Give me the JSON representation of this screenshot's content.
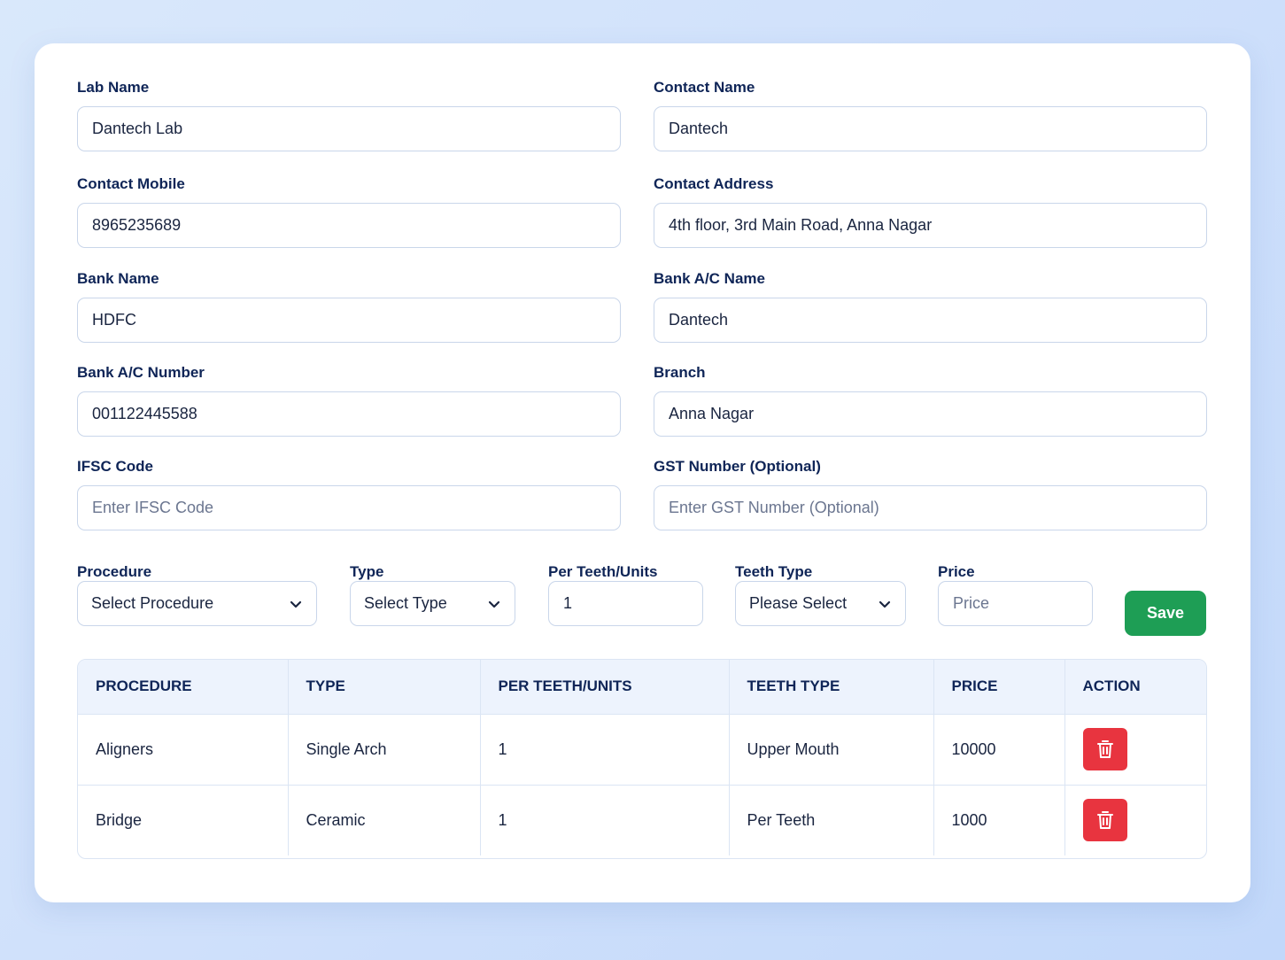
{
  "form": {
    "lab_name": {
      "label": "Lab Name",
      "value": "Dantech Lab"
    },
    "contact_name": {
      "label": "Contact Name",
      "value": "Dantech"
    },
    "contact_mobile": {
      "label": "Contact Mobile",
      "value": "8965235689"
    },
    "contact_address": {
      "label": "Contact Address",
      "value": "4th floor, 3rd Main Road, Anna Nagar"
    },
    "bank_name": {
      "label": "Bank Name",
      "value": "HDFC"
    },
    "bank_ac_name": {
      "label": "Bank A/C Name",
      "value": "Dantech"
    },
    "bank_ac_number": {
      "label": "Bank A/C Number",
      "value": "001122445588"
    },
    "branch": {
      "label": "Branch",
      "value": "Anna Nagar"
    },
    "ifsc_code": {
      "label": "IFSC Code",
      "value": "",
      "placeholder": "Enter IFSC Code"
    },
    "gst_number": {
      "label": "GST Number (Optional)",
      "value": "",
      "placeholder": "Enter GST Number (Optional)"
    }
  },
  "procedure_row": {
    "procedure": {
      "label": "Procedure",
      "selected": "Select Procedure"
    },
    "type": {
      "label": "Type",
      "selected": "Select Type"
    },
    "per_teeth": {
      "label": "Per Teeth/Units",
      "value": "1"
    },
    "teeth_type": {
      "label": "Teeth Type",
      "selected": "Please Select"
    },
    "price": {
      "label": "Price",
      "value": "",
      "placeholder": "Price"
    },
    "save_label": "Save"
  },
  "table": {
    "headers": [
      "PROCEDURE",
      "TYPE",
      "PER TEETH/UNITS",
      "TEETH TYPE",
      "PRICE",
      "ACTION"
    ],
    "rows": [
      [
        "Aligners",
        "Single Arch",
        "1",
        "Upper Mouth",
        "10000"
      ],
      [
        "Bridge",
        "Ceramic",
        "1",
        "Per Teeth",
        "1000"
      ]
    ]
  },
  "colors": {
    "accent_save": "#1e9e55",
    "delete": "#e8343f",
    "label": "#0f2557"
  },
  "icons": {
    "delete": "trash-icon",
    "dropdown": "chevron-down-icon"
  }
}
